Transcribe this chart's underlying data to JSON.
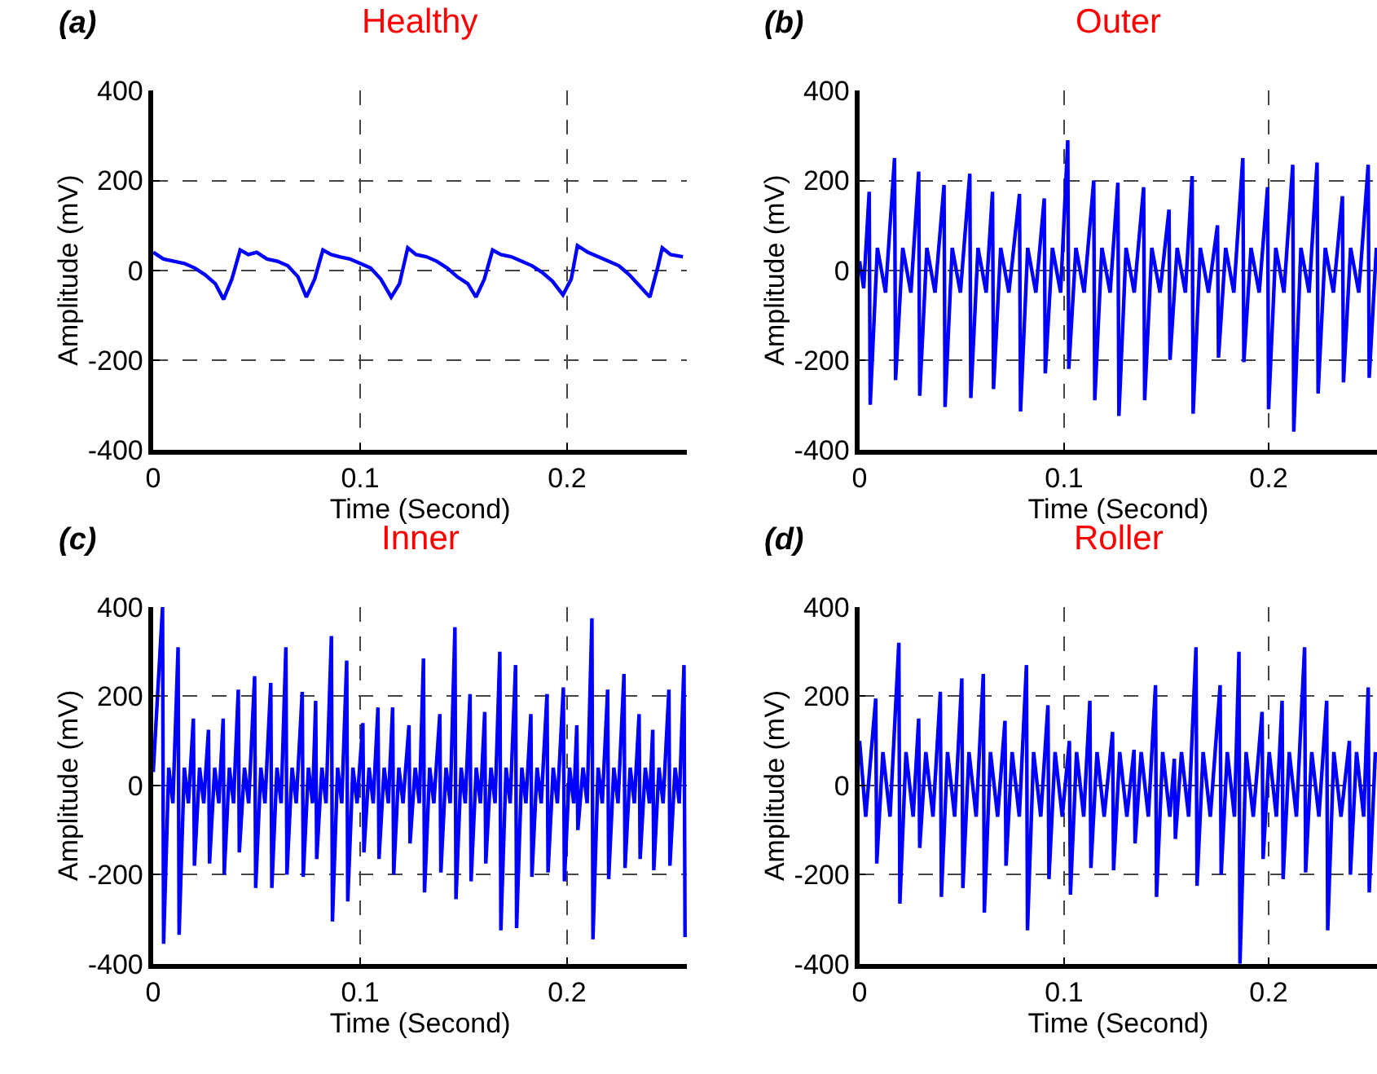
{
  "chart_data": [
    {
      "type": "line",
      "title": "Healthy",
      "annotations": [
        "(a)"
      ],
      "xlabel": "Time (Second)",
      "ylabel": "Amplitude (mV)",
      "xlim": [
        0,
        0.258
      ],
      "xticks": [
        0,
        0.1,
        0.2
      ],
      "ylim": [
        -400,
        400
      ],
      "yticks": [
        -400,
        -200,
        0,
        200,
        400
      ],
      "grid": true,
      "x": [
        0,
        0.005,
        0.01,
        0.015,
        0.02,
        0.025,
        0.03,
        0.034,
        0.038,
        0.042,
        0.046,
        0.05,
        0.055,
        0.06,
        0.065,
        0.07,
        0.074,
        0.078,
        0.082,
        0.086,
        0.09,
        0.095,
        0.1,
        0.105,
        0.11,
        0.115,
        0.119,
        0.123,
        0.127,
        0.132,
        0.137,
        0.142,
        0.147,
        0.152,
        0.156,
        0.16,
        0.164,
        0.168,
        0.173,
        0.178,
        0.183,
        0.188,
        0.193,
        0.198,
        0.202,
        0.205,
        0.21,
        0.215,
        0.22,
        0.225,
        0.23,
        0.235,
        0.24,
        0.244,
        0.246,
        0.25,
        0.256
      ],
      "series": [
        {
          "color": "#0000ff",
          "values": [
            40,
            25,
            20,
            15,
            5,
            -10,
            -30,
            -65,
            -20,
            45,
            35,
            40,
            25,
            20,
            10,
            -15,
            -60,
            -20,
            45,
            35,
            30,
            25,
            15,
            5,
            -20,
            -60,
            -30,
            50,
            35,
            30,
            20,
            5,
            -15,
            -30,
            -60,
            -20,
            45,
            35,
            30,
            20,
            10,
            -5,
            -25,
            -55,
            -20,
            55,
            40,
            30,
            20,
            10,
            -10,
            -35,
            -60,
            10,
            50,
            35,
            30
          ]
        }
      ]
    },
    {
      "type": "line",
      "title": "Outer",
      "annotations": [
        "(b)"
      ],
      "xlabel": "Time (Second)",
      "ylabel": "Amplitude (mV)",
      "xlim": [
        0,
        0.253
      ],
      "xticks": [
        0,
        0.1,
        0.2
      ],
      "ylim": [
        -400,
        400
      ],
      "yticks": [
        -400,
        -200,
        0,
        200,
        400
      ],
      "grid": true,
      "x": [
        0,
        0.002,
        0.0047,
        0.0052,
        0.0087,
        0.0127,
        0.0171,
        0.0176,
        0.0211,
        0.0251,
        0.0289,
        0.0294,
        0.0329,
        0.0369,
        0.0413,
        0.0418,
        0.0453,
        0.0493,
        0.0539,
        0.0544,
        0.0579,
        0.0619,
        0.065,
        0.0655,
        0.069,
        0.073,
        0.0782,
        0.0787,
        0.0822,
        0.0862,
        0.0903,
        0.0908,
        0.0943,
        0.0983,
        0.1018,
        0.1023,
        0.1058,
        0.1098,
        0.1145,
        0.115,
        0.1185,
        0.1225,
        0.1263,
        0.1268,
        0.1303,
        0.1343,
        0.1389,
        0.1394,
        0.1429,
        0.1469,
        0.1513,
        0.1518,
        0.1553,
        0.1593,
        0.1626,
        0.1631,
        0.1666,
        0.1706,
        0.175,
        0.1755,
        0.179,
        0.183,
        0.1874,
        0.1879,
        0.1914,
        0.1954,
        0.1995,
        0.2,
        0.2035,
        0.2075,
        0.2118,
        0.2123,
        0.2158,
        0.2198,
        0.2237,
        0.2242,
        0.2277,
        0.2317,
        0.2361,
        0.2366,
        0.2401,
        0.2441,
        0.2487,
        0.2492,
        0.2527
      ],
      "series": [
        {
          "color": "#0000ff",
          "values": [
            20,
            -40,
            175,
            -300,
            50,
            -50,
            250,
            -245,
            50,
            -50,
            220,
            -280,
            50,
            -50,
            190,
            -305,
            50,
            -50,
            215,
            -285,
            50,
            -50,
            175,
            -265,
            50,
            -50,
            170,
            -315,
            50,
            -50,
            160,
            -230,
            50,
            -50,
            290,
            -220,
            50,
            -50,
            200,
            -290,
            50,
            -50,
            195,
            -325,
            50,
            -50,
            185,
            -290,
            50,
            -50,
            135,
            -200,
            50,
            -50,
            210,
            -320,
            50,
            -50,
            100,
            -195,
            50,
            -50,
            250,
            -205,
            50,
            -50,
            185,
            -310,
            50,
            -50,
            235,
            -360,
            50,
            -50,
            240,
            -275,
            50,
            -50,
            165,
            -250,
            50,
            -50,
            235,
            -240,
            50
          ]
        }
      ]
    },
    {
      "type": "line",
      "title": "Inner",
      "annotations": [
        "(c)"
      ],
      "xlabel": "Time (Second)",
      "ylabel": "Amplitude (mV)",
      "xlim": [
        0,
        0.258
      ],
      "xticks": [
        0,
        0.1,
        0.2
      ],
      "ylim": [
        -400,
        400
      ],
      "yticks": [
        -400,
        -200,
        0,
        200,
        400
      ],
      "grid": true,
      "x": [
        0,
        0.0045,
        0.005,
        0.0075,
        0.0095,
        0.012,
        0.0125,
        0.015,
        0.017,
        0.0194,
        0.0199,
        0.0224,
        0.0244,
        0.0267,
        0.0272,
        0.0297,
        0.0317,
        0.0338,
        0.0343,
        0.0368,
        0.0388,
        0.0411,
        0.0416,
        0.0441,
        0.0461,
        0.049,
        0.0495,
        0.052,
        0.054,
        0.0568,
        0.0573,
        0.0598,
        0.0618,
        0.0641,
        0.0646,
        0.0671,
        0.0691,
        0.072,
        0.0725,
        0.075,
        0.077,
        0.0785,
        0.079,
        0.0815,
        0.0835,
        0.0861,
        0.0866,
        0.0891,
        0.0911,
        0.0935,
        0.094,
        0.0965,
        0.0985,
        0.1013,
        0.1018,
        0.1043,
        0.1063,
        0.1086,
        0.1091,
        0.1116,
        0.1136,
        0.1157,
        0.1162,
        0.1187,
        0.1207,
        0.1236,
        0.1241,
        0.1266,
        0.1286,
        0.1306,
        0.1311,
        0.1336,
        0.1356,
        0.1385,
        0.139,
        0.1415,
        0.1435,
        0.1458,
        0.1463,
        0.1488,
        0.1508,
        0.1531,
        0.1536,
        0.1561,
        0.1581,
        0.1602,
        0.1607,
        0.1632,
        0.1652,
        0.1675,
        0.168,
        0.1705,
        0.1725,
        0.1751,
        0.1756,
        0.1781,
        0.1801,
        0.1825,
        0.183,
        0.1855,
        0.1875,
        0.1903,
        0.1908,
        0.1933,
        0.1953,
        0.1982,
        0.1987,
        0.2012,
        0.2032,
        0.2047,
        0.2052,
        0.2077,
        0.2097,
        0.212,
        0.2125,
        0.215,
        0.217,
        0.2196,
        0.2201,
        0.2226,
        0.2246,
        0.2275,
        0.228,
        0.2305,
        0.2325,
        0.2348,
        0.2353,
        0.2378,
        0.2398,
        0.2414,
        0.2419,
        0.2444,
        0.2464,
        0.2492,
        0.2497,
        0.2522,
        0.2542,
        0.2565,
        0.257
      ],
      "series": [
        {
          "color": "#0000ff",
          "values": [
            30,
            400,
            -355,
            40,
            -40,
            310,
            -335,
            40,
            -40,
            150,
            -180,
            40,
            -40,
            125,
            -175,
            40,
            -40,
            150,
            -200,
            40,
            -40,
            215,
            -150,
            40,
            -40,
            245,
            -230,
            40,
            -40,
            230,
            -230,
            40,
            -40,
            310,
            -200,
            40,
            -40,
            210,
            -205,
            40,
            -40,
            190,
            -165,
            40,
            -40,
            335,
            -305,
            40,
            -40,
            280,
            -260,
            40,
            -40,
            140,
            -150,
            40,
            -40,
            175,
            -165,
            40,
            -40,
            175,
            -200,
            40,
            -40,
            135,
            -130,
            40,
            -40,
            285,
            -240,
            40,
            -40,
            160,
            -195,
            40,
            -40,
            355,
            -255,
            40,
            -40,
            205,
            -215,
            40,
            -40,
            165,
            -175,
            40,
            -40,
            300,
            -325,
            40,
            -40,
            270,
            -320,
            40,
            -40,
            160,
            -205,
            40,
            -40,
            205,
            -195,
            40,
            -40,
            220,
            -215,
            40,
            -40,
            135,
            -100,
            40,
            -40,
            375,
            -345,
            40,
            -40,
            215,
            -210,
            40,
            -40,
            250,
            -185,
            40,
            -40,
            160,
            -165,
            40,
            -40,
            125,
            -190,
            40,
            -40,
            215,
            -180,
            40,
            -40,
            270,
            -340
          ]
        }
      ]
    },
    {
      "type": "line",
      "title": "Roller",
      "annotations": [
        "(d)"
      ],
      "xlabel": "Time (Second)",
      "ylabel": "Amplitude (mV)",
      "xlim": [
        0,
        0.253
      ],
      "xticks": [
        0,
        0.1,
        0.2
      ],
      "ylim": [
        -400,
        400
      ],
      "yticks": [
        -400,
        -200,
        0,
        200,
        400
      ],
      "grid": true,
      "x": [
        0,
        0.003,
        0.0079,
        0.0084,
        0.0114,
        0.0149,
        0.0192,
        0.0197,
        0.0227,
        0.0262,
        0.0289,
        0.0294,
        0.0324,
        0.0359,
        0.0395,
        0.04,
        0.043,
        0.0465,
        0.05,
        0.0505,
        0.0535,
        0.057,
        0.0605,
        0.061,
        0.064,
        0.0675,
        0.0711,
        0.0716,
        0.0746,
        0.0781,
        0.0816,
        0.0821,
        0.0851,
        0.0886,
        0.0921,
        0.0926,
        0.0956,
        0.0991,
        0.1026,
        0.1031,
        0.1061,
        0.1096,
        0.1126,
        0.1131,
        0.1161,
        0.1196,
        0.1237,
        0.1242,
        0.1272,
        0.1307,
        0.1342,
        0.1347,
        0.1377,
        0.1412,
        0.1447,
        0.1452,
        0.1482,
        0.1517,
        0.1539,
        0.1544,
        0.1574,
        0.1609,
        0.1645,
        0.165,
        0.168,
        0.1715,
        0.1763,
        0.1768,
        0.1798,
        0.1833,
        0.1855,
        0.186,
        0.189,
        0.1925,
        0.1968,
        0.1973,
        0.2003,
        0.2038,
        0.2066,
        0.2071,
        0.2101,
        0.2136,
        0.2176,
        0.2181,
        0.2211,
        0.2246,
        0.2284,
        0.2289,
        0.2319,
        0.2354,
        0.2395,
        0.24,
        0.243,
        0.2465,
        0.2487,
        0.2492,
        0.2522
      ],
      "series": [
        {
          "color": "#0000ff",
          "values": [
            100,
            -70,
            195,
            -175,
            75,
            -70,
            320,
            -265,
            75,
            -70,
            150,
            -140,
            75,
            -70,
            210,
            -250,
            75,
            -70,
            240,
            -230,
            75,
            -70,
            250,
            -285,
            75,
            -70,
            145,
            -180,
            75,
            -70,
            270,
            -325,
            75,
            -70,
            180,
            -210,
            75,
            -70,
            100,
            -245,
            75,
            -70,
            190,
            -185,
            75,
            -70,
            120,
            -190,
            75,
            -70,
            80,
            -130,
            75,
            -70,
            225,
            -250,
            75,
            -70,
            60,
            -120,
            75,
            -70,
            310,
            -225,
            75,
            -70,
            225,
            -200,
            75,
            -70,
            300,
            -400,
            75,
            -70,
            165,
            -165,
            75,
            -70,
            190,
            -210,
            75,
            -70,
            310,
            -195,
            75,
            -70,
            190,
            -325,
            75,
            -70,
            100,
            -200,
            75,
            -70,
            220,
            -240,
            75
          ]
        }
      ]
    }
  ]
}
